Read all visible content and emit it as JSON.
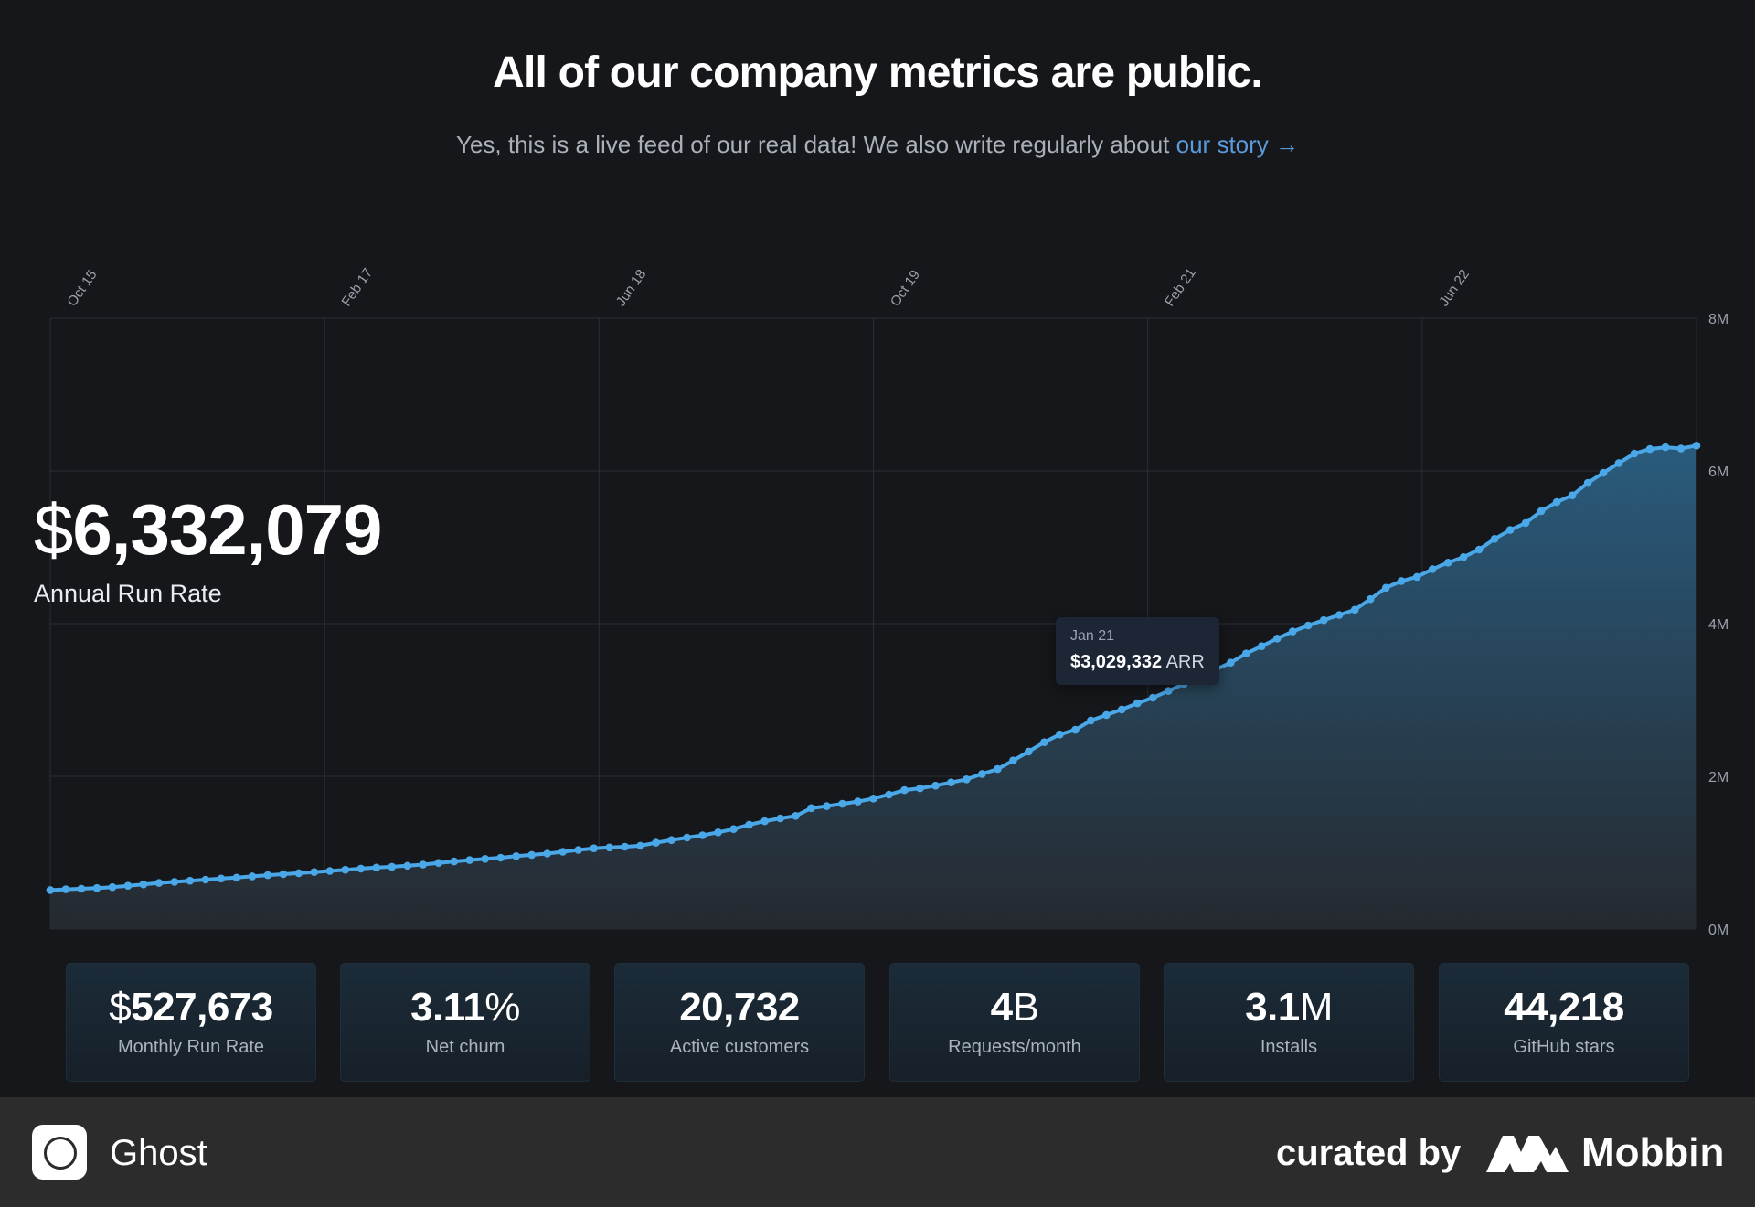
{
  "header": {
    "title": "All of our company metrics are public.",
    "subtitle": "Yes, this is a live feed of our real data! We also write regularly about",
    "story_link": "our story →"
  },
  "headline_metric": {
    "currency": "$",
    "value": "6,332,079",
    "label": "Annual Run Rate"
  },
  "tooltip": {
    "date": "Jan 21",
    "value": "$3,029,332",
    "unit": "ARR"
  },
  "metrics": [
    {
      "prefix": "$",
      "value": "527,673",
      "unit": "",
      "label": "Monthly Run Rate"
    },
    {
      "prefix": "",
      "value": "3.11",
      "unit": "%",
      "label": "Net churn"
    },
    {
      "prefix": "",
      "value": "20,732",
      "unit": "",
      "label": "Active customers"
    },
    {
      "prefix": "",
      "value": "4",
      "unit": "B",
      "label": "Requests/month"
    },
    {
      "prefix": "",
      "value": "3.1",
      "unit": "M",
      "label": "Installs"
    },
    {
      "prefix": "",
      "value": "44,218",
      "unit": "",
      "label": "GitHub stars"
    }
  ],
  "footer": {
    "app_name": "Ghost",
    "curated_by": "curated by",
    "brand": "Mobbin"
  },
  "chart_data": {
    "type": "area",
    "title": "Annual Run Rate",
    "x_unit": "months since Oct 2015",
    "x_range": [
      0,
      96
    ],
    "ylim": [
      0,
      8000000
    ],
    "y_ticks": [
      0,
      2000000,
      4000000,
      6000000,
      8000000
    ],
    "y_tick_labels": [
      "0M",
      "2M",
      "4M",
      "6M",
      "8M"
    ],
    "x_ticks": [
      0,
      16,
      32,
      48,
      64,
      80
    ],
    "x_tick_labels": [
      "Oct 15",
      "Feb 17",
      "Jun 18",
      "Oct 19",
      "Feb 21",
      "Jun 22"
    ],
    "grid": true,
    "highlight": {
      "label": "Jan 21",
      "value": 3029332
    },
    "series": [
      {
        "name": "ARR",
        "color": "#4aa8e8",
        "values": [
          510000,
          520000,
          528000,
          536000,
          548000,
          566000,
          585000,
          604000,
          618000,
          632000,
          647000,
          661000,
          673000,
          690000,
          705000,
          718000,
          732000,
          746000,
          760000,
          776000,
          792000,
          805000,
          816000,
          829000,
          844000,
          866000,
          885000,
          903000,
          918000,
          934000,
          955000,
          971000,
          988000,
          1012000,
          1036000,
          1057000,
          1068000,
          1078000,
          1091000,
          1131000,
          1165000,
          1198000,
          1227000,
          1266000,
          1309000,
          1367000,
          1412000,
          1449000,
          1481000,
          1583000,
          1609000,
          1639000,
          1669000,
          1709000,
          1761000,
          1819000,
          1843000,
          1878000,
          1920000,
          1960000,
          2031000,
          2095000,
          2207000,
          2325000,
          2447000,
          2548000,
          2609000,
          2732000,
          2804000,
          2875000,
          2957000,
          3030000,
          3118000,
          3209000,
          3307000,
          3397000,
          3489000,
          3608000,
          3704000,
          3805000,
          3897000,
          3976000,
          4045000,
          4114000,
          4182000,
          4321000,
          4469000,
          4558000,
          4612000,
          4714000,
          4799000,
          4871000,
          4970000,
          5110000,
          5226000,
          5319000,
          5474000,
          5592000,
          5680000,
          5843000,
          5975000,
          6103000,
          6227000,
          6286000,
          6310000,
          6294000,
          6332000
        ]
      }
    ]
  }
}
